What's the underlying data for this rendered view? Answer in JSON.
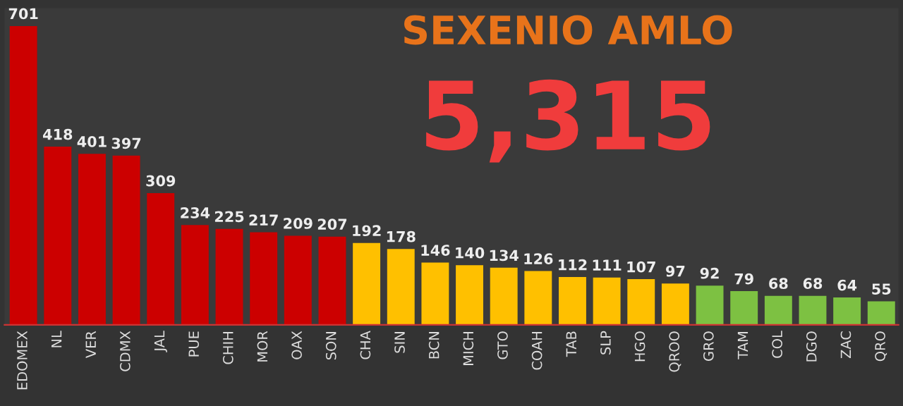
{
  "chart_data": {
    "type": "bar",
    "title": "SEXENIO AMLO",
    "annotations": [
      "5,315"
    ],
    "categories": [
      "EDOMEX",
      "NL",
      "VER",
      "CDMX",
      "JAL",
      "PUE",
      "CHIH",
      "MOR",
      "OAX",
      "SON",
      "CHA",
      "SIN",
      "BCN",
      "MICH",
      "GTO",
      "COAH",
      "TAB",
      "SLP",
      "HGO",
      "QROO",
      "GRO",
      "TAM",
      "COL",
      "DGO",
      "ZAC",
      "QRO"
    ],
    "values": [
      701,
      418,
      401,
      397,
      309,
      234,
      225,
      217,
      209,
      207,
      192,
      178,
      146,
      140,
      134,
      126,
      112,
      111,
      107,
      97,
      92,
      79,
      68,
      68,
      64,
      55
    ],
    "colors": [
      "#cc0000",
      "#cc0000",
      "#cc0000",
      "#cc0000",
      "#cc0000",
      "#cc0000",
      "#cc0000",
      "#cc0000",
      "#cc0000",
      "#cc0000",
      "#ffc000",
      "#ffc000",
      "#ffc000",
      "#ffc000",
      "#ffc000",
      "#ffc000",
      "#ffc000",
      "#ffc000",
      "#ffc000",
      "#ffc000",
      "#7dc142",
      "#7dc142",
      "#7dc142",
      "#7dc142",
      "#7dc142",
      "#7dc142"
    ],
    "data_labels": true,
    "grid": false,
    "legend": false
  }
}
